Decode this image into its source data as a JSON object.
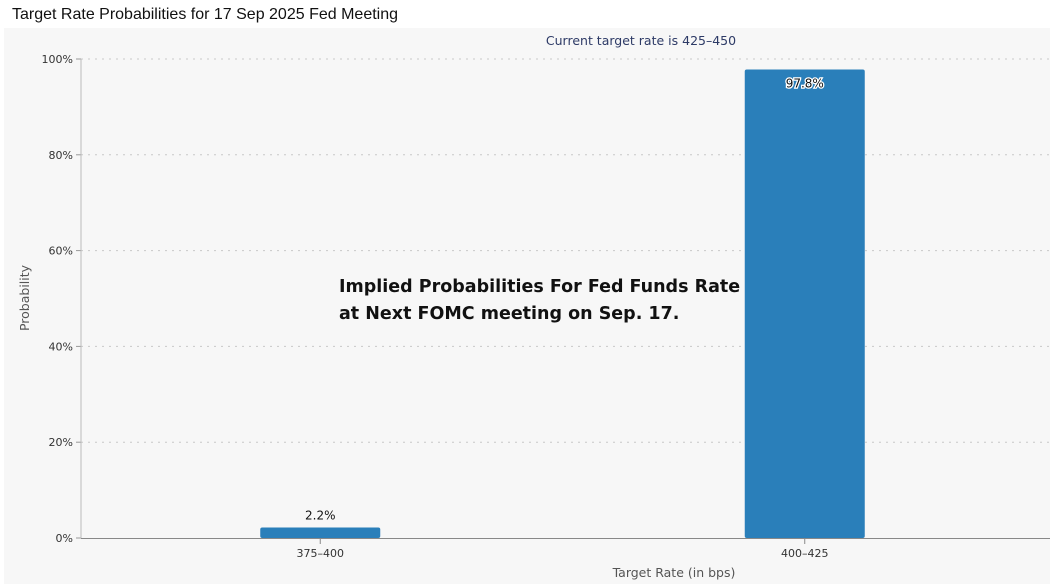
{
  "window": {
    "title": "Target Rate Probabilities for 17 Sep 2025 Fed Meeting"
  },
  "chart_data": {
    "type": "bar",
    "title": "",
    "subtitle": "Current target rate is 425–450",
    "xlabel": "Target Rate (in bps)",
    "ylabel": "Probability",
    "categories": [
      "375–400",
      "400–425"
    ],
    "values": [
      2.2,
      97.8
    ],
    "data_labels": [
      "2.2%",
      "97.8%"
    ],
    "ylim": [
      0,
      100
    ],
    "yticks": [
      0,
      20,
      40,
      60,
      80,
      100
    ],
    "ytick_labels": [
      "0%",
      "20%",
      "40%",
      "60%",
      "80%",
      "100%"
    ],
    "grid": true,
    "legend": "none",
    "bar_color": "#2a7fba",
    "annotation": {
      "lines": [
        "Implied Probabilities For Fed Funds Rate",
        "at Next FOMC meeting on Sep. 17."
      ]
    }
  }
}
